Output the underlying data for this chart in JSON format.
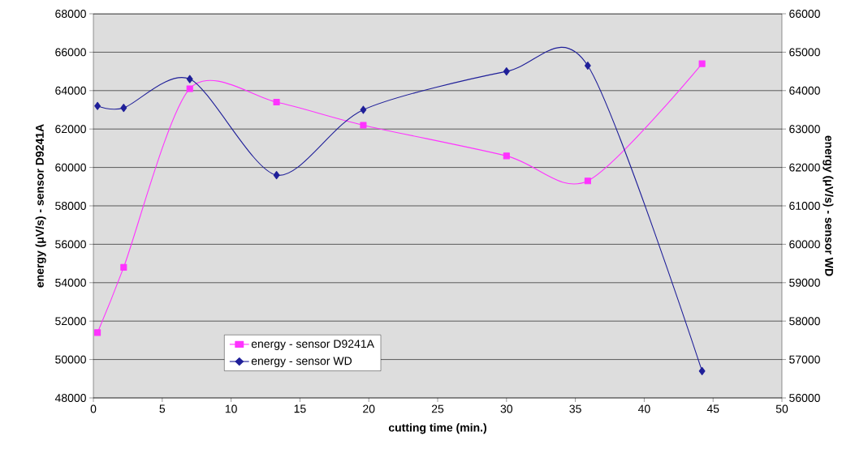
{
  "chart_data": {
    "type": "line",
    "xlabel": "cutting time (min.)",
    "ylabel": "energy (μV/s) - sensor D9241A",
    "y2label": "energy (μV/s) - sensor WD",
    "x": [
      0.3,
      2.2,
      7.0,
      13.3,
      19.6,
      30.0,
      35.9,
      44.2
    ],
    "series": [
      {
        "name": "energy - sensor D9241A",
        "color": "#ff33ff",
        "marker": "square",
        "values": [
          51400,
          54800,
          64100,
          63400,
          62200,
          60600,
          59300,
          65400
        ]
      },
      {
        "name": "energy - sensor WD",
        "color": "#1f1f99",
        "marker": "diamond",
        "axis": "y2",
        "values": [
          63600,
          63550,
          64300,
          61800,
          63500,
          64500,
          64650,
          56700
        ]
      }
    ],
    "xlim": [
      0,
      50
    ],
    "xticks": [
      0,
      5,
      10,
      15,
      20,
      25,
      30,
      35,
      40,
      45,
      50
    ],
    "ylim": [
      48000,
      68000
    ],
    "yticks": [
      48000,
      50000,
      52000,
      54000,
      56000,
      58000,
      60000,
      62000,
      64000,
      66000,
      68000
    ],
    "y2lim": [
      56000,
      66000
    ],
    "y2ticks": [
      56000,
      57000,
      58000,
      59000,
      60000,
      61000,
      62000,
      63000,
      64000,
      65000,
      66000
    ],
    "grid": "y",
    "legend": "bottom"
  }
}
